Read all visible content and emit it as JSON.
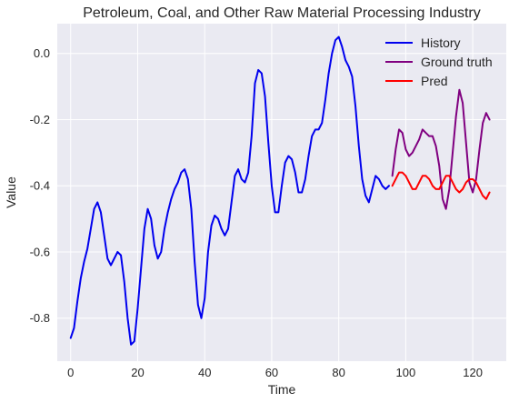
{
  "chart_data": {
    "type": "line",
    "title": "Petroleum, Coal, and Other Raw Material Processing Industry",
    "xlabel": "Time",
    "ylabel": "Value",
    "xlim": [
      -4,
      130
    ],
    "ylim": [
      -0.93,
      0.09
    ],
    "xticks": [
      0,
      20,
      40,
      60,
      80,
      100,
      120
    ],
    "yticks": [
      0.0,
      -0.2,
      -0.4,
      -0.6,
      -0.8
    ],
    "grid": true,
    "legend_position": "top-right",
    "series": [
      {
        "name": "History",
        "color": "#0000ee",
        "x": [
          0,
          1,
          2,
          3,
          4,
          5,
          6,
          7,
          8,
          9,
          10,
          11,
          12,
          13,
          14,
          15,
          16,
          17,
          18,
          19,
          20,
          21,
          22,
          23,
          24,
          25,
          26,
          27,
          28,
          29,
          30,
          31,
          32,
          33,
          34,
          35,
          36,
          37,
          38,
          39,
          40,
          41,
          42,
          43,
          44,
          45,
          46,
          47,
          48,
          49,
          50,
          51,
          52,
          53,
          54,
          55,
          56,
          57,
          58,
          59,
          60,
          61,
          62,
          63,
          64,
          65,
          66,
          67,
          68,
          69,
          70,
          71,
          72,
          73,
          74,
          75,
          76,
          77,
          78,
          79,
          80,
          81,
          82,
          83,
          84,
          85,
          86,
          87,
          88,
          89,
          90,
          91,
          92,
          93,
          94,
          95
        ],
        "y": [
          -0.86,
          -0.83,
          -0.75,
          -0.68,
          -0.63,
          -0.59,
          -0.53,
          -0.47,
          -0.45,
          -0.48,
          -0.55,
          -0.62,
          -0.64,
          -0.62,
          -0.6,
          -0.61,
          -0.69,
          -0.8,
          -0.88,
          -0.87,
          -0.77,
          -0.65,
          -0.53,
          -0.47,
          -0.5,
          -0.58,
          -0.62,
          -0.6,
          -0.53,
          -0.48,
          -0.44,
          -0.41,
          -0.39,
          -0.36,
          -0.35,
          -0.38,
          -0.47,
          -0.63,
          -0.76,
          -0.8,
          -0.74,
          -0.6,
          -0.52,
          -0.49,
          -0.5,
          -0.53,
          -0.55,
          -0.53,
          -0.45,
          -0.37,
          -0.35,
          -0.38,
          -0.39,
          -0.36,
          -0.25,
          -0.09,
          -0.05,
          -0.06,
          -0.13,
          -0.27,
          -0.4,
          -0.48,
          -0.48,
          -0.4,
          -0.33,
          -0.31,
          -0.32,
          -0.36,
          -0.42,
          -0.42,
          -0.38,
          -0.31,
          -0.25,
          -0.23,
          -0.23,
          -0.21,
          -0.14,
          -0.06,
          0.0,
          0.04,
          0.05,
          0.02,
          -0.02,
          -0.04,
          -0.07,
          -0.16,
          -0.28,
          -0.38,
          -0.43,
          -0.45,
          -0.41,
          -0.37,
          -0.38,
          -0.4,
          -0.41,
          -0.4
        ]
      },
      {
        "name": "Ground truth",
        "color": "#800080",
        "x": [
          96,
          97,
          98,
          99,
          100,
          101,
          102,
          103,
          104,
          105,
          106,
          107,
          108,
          109,
          110,
          111,
          112,
          113,
          114,
          115,
          116,
          117,
          118,
          119,
          120,
          121,
          122,
          123,
          124,
          125
        ],
        "y": [
          -0.37,
          -0.29,
          -0.23,
          -0.24,
          -0.29,
          -0.31,
          -0.3,
          -0.28,
          -0.26,
          -0.23,
          -0.24,
          -0.25,
          -0.25,
          -0.28,
          -0.34,
          -0.44,
          -0.47,
          -0.41,
          -0.3,
          -0.19,
          -0.11,
          -0.15,
          -0.27,
          -0.39,
          -0.42,
          -0.38,
          -0.29,
          -0.21,
          -0.18,
          -0.2
        ]
      },
      {
        "name": "Pred",
        "color": "#ff0000",
        "x": [
          96,
          97,
          98,
          99,
          100,
          101,
          102,
          103,
          104,
          105,
          106,
          107,
          108,
          109,
          110,
          111,
          112,
          113,
          114,
          115,
          116,
          117,
          118,
          119,
          120,
          121,
          122,
          123,
          124,
          125
        ],
        "y": [
          -0.4,
          -0.38,
          -0.36,
          -0.36,
          -0.37,
          -0.39,
          -0.41,
          -0.41,
          -0.39,
          -0.37,
          -0.37,
          -0.38,
          -0.4,
          -0.41,
          -0.41,
          -0.39,
          -0.37,
          -0.37,
          -0.39,
          -0.41,
          -0.42,
          -0.41,
          -0.39,
          -0.38,
          -0.38,
          -0.39,
          -0.41,
          -0.43,
          -0.44,
          -0.42
        ]
      }
    ]
  }
}
